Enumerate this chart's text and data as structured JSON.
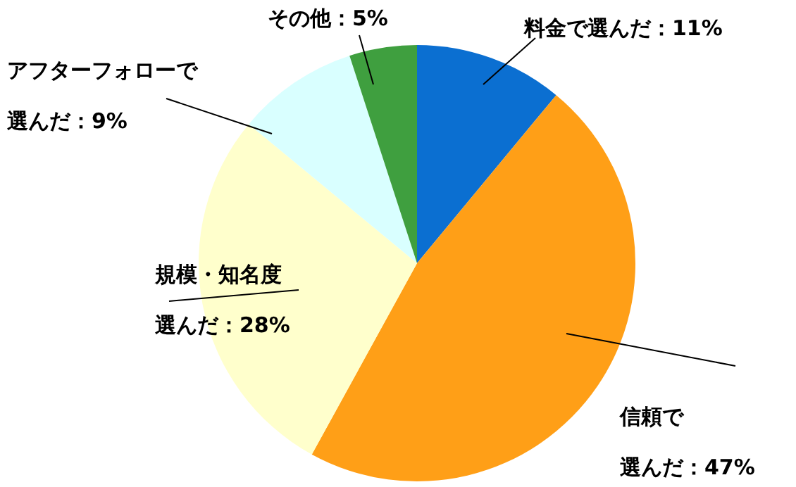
{
  "chart_data": {
    "type": "pie",
    "categories": [
      "料金で選んだ",
      "信頼で選んだ",
      "規模・知名度選んだ",
      "アフターフォローで選んだ",
      "その他"
    ],
    "values": [
      11,
      47,
      28,
      9,
      5
    ],
    "value_labels": [
      "：11%",
      "：47%",
      "：28%",
      "：9%",
      "：5%"
    ],
    "colors": [
      "#0b6fd1",
      "#ff9f17",
      "#ffffcc",
      "#d9ffff",
      "#3f9f3f"
    ]
  }
}
